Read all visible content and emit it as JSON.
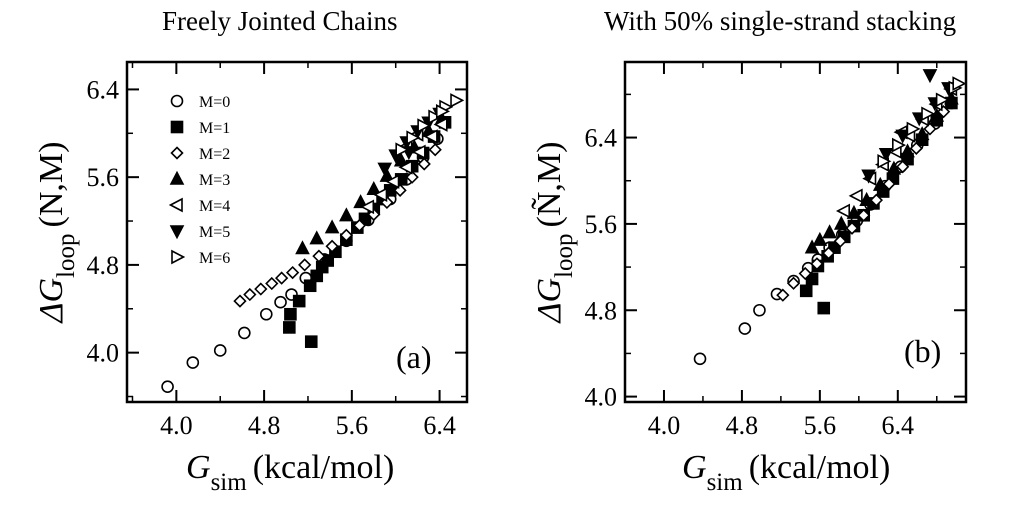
{
  "chart_data": [
    {
      "type": "scatter",
      "panel_label": "(a)",
      "title": "Freely Jointed Chains",
      "xlabel": {
        "main": "G",
        "sub": "sim",
        "unit": "(kcal/mol)"
      },
      "ylabel": {
        "prefix": "ΔG",
        "sub": "loop",
        "arg": "(N,M)"
      },
      "xlim": [
        3.55,
        6.65
      ],
      "ylim": [
        3.55,
        6.65
      ],
      "xticks": [
        4.0,
        4.8,
        5.6,
        6.4
      ],
      "yticks": [
        4.0,
        4.8,
        5.6,
        6.4
      ],
      "xtick_labels": [
        "4.0",
        "4.8",
        "5.6",
        "6.4"
      ],
      "ytick_labels": [
        "4.0",
        "4.8",
        "5.6",
        "6.4"
      ],
      "legend_position": "top-left",
      "series": [
        {
          "name": "M=0",
          "marker": "circle-open",
          "points": [
            [
              3.92,
              3.69
            ],
            [
              4.15,
              3.91
            ],
            [
              4.4,
              4.02
            ],
            [
              4.62,
              4.18
            ],
            [
              4.82,
              4.35
            ],
            [
              4.95,
              4.46
            ],
            [
              5.05,
              4.53
            ],
            [
              5.18,
              4.68
            ],
            [
              5.35,
              4.85
            ],
            [
              5.55,
              5.02
            ],
            [
              5.75,
              5.21
            ],
            [
              5.95,
              5.4
            ],
            [
              6.1,
              5.58
            ],
            [
              6.25,
              5.78
            ],
            [
              6.38,
              5.95
            ]
          ]
        },
        {
          "name": "M=1",
          "marker": "square-filled",
          "points": [
            [
              5.03,
              4.23
            ],
            [
              5.04,
              4.35
            ],
            [
              5.12,
              4.47
            ],
            [
              5.22,
              4.61
            ],
            [
              5.28,
              4.7
            ],
            [
              5.33,
              4.78
            ],
            [
              5.38,
              4.84
            ],
            [
              5.45,
              4.92
            ],
            [
              5.55,
              5.03
            ],
            [
              5.65,
              5.14
            ],
            [
              5.72,
              5.22
            ],
            [
              5.8,
              5.31
            ],
            [
              5.88,
              5.4
            ],
            [
              5.95,
              5.48
            ],
            [
              6.05,
              5.58
            ],
            [
              6.15,
              5.7
            ],
            [
              6.25,
              5.82
            ],
            [
              6.35,
              5.97
            ],
            [
              6.45,
              6.1
            ],
            [
              5.23,
              4.1
            ]
          ]
        },
        {
          "name": "M=2",
          "marker": "diamond-open",
          "points": [
            [
              4.58,
              4.47
            ],
            [
              4.67,
              4.53
            ],
            [
              4.77,
              4.58
            ],
            [
              4.87,
              4.63
            ],
            [
              4.96,
              4.68
            ],
            [
              5.06,
              4.73
            ],
            [
              5.17,
              4.8
            ],
            [
              5.3,
              4.88
            ],
            [
              5.42,
              4.97
            ],
            [
              5.55,
              5.07
            ],
            [
              5.67,
              5.16
            ],
            [
              5.8,
              5.26
            ],
            [
              5.92,
              5.37
            ],
            [
              6.04,
              5.48
            ],
            [
              6.15,
              5.6
            ],
            [
              6.26,
              5.72
            ],
            [
              6.36,
              5.85
            ]
          ]
        },
        {
          "name": "M=3",
          "marker": "triangle-up-filled",
          "points": [
            [
              5.15,
              4.95
            ],
            [
              5.28,
              5.04
            ],
            [
              5.42,
              5.14
            ],
            [
              5.55,
              5.25
            ],
            [
              5.68,
              5.37
            ],
            [
              5.8,
              5.49
            ],
            [
              5.92,
              5.61
            ],
            [
              6.05,
              5.75
            ],
            [
              6.17,
              5.87
            ],
            [
              6.3,
              6.02
            ],
            [
              6.42,
              6.13
            ]
          ]
        },
        {
          "name": "M=4",
          "marker": "triangle-left-open",
          "points": [
            [
              5.75,
              5.33
            ],
            [
              5.87,
              5.44
            ],
            [
              5.98,
              5.56
            ],
            [
              6.1,
              5.69
            ],
            [
              6.22,
              5.83
            ],
            [
              6.33,
              5.97
            ],
            [
              6.42,
              6.08
            ],
            [
              6.1,
              5.88
            ],
            [
              6.2,
              5.99
            ]
          ]
        },
        {
          "name": "M=5",
          "marker": "triangle-down-filled",
          "points": [
            [
              5.9,
              5.68
            ],
            [
              6.0,
              5.8
            ],
            [
              6.1,
              5.92
            ],
            [
              6.2,
              6.02
            ],
            [
              6.3,
              6.1
            ],
            [
              6.4,
              6.18
            ],
            [
              6.12,
              5.83
            ]
          ]
        },
        {
          "name": "M=6",
          "marker": "triangle-right-open",
          "points": [
            [
              6.05,
              5.85
            ],
            [
              6.15,
              5.96
            ],
            [
              6.25,
              6.07
            ],
            [
              6.35,
              6.15
            ],
            [
              6.45,
              6.24
            ],
            [
              6.55,
              6.3
            ],
            [
              6.42,
              6.2
            ]
          ]
        }
      ]
    },
    {
      "type": "scatter",
      "panel_label": "(b)",
      "title": "With 50% single-strand stacking",
      "xlabel": {
        "main": "G",
        "sub": "sim",
        "unit": "(kcal/mol)"
      },
      "ylabel": {
        "prefix": "ΔG",
        "sub": "loop",
        "arg": "(Ñ,M)"
      },
      "xlim": [
        3.6,
        7.1
      ],
      "ylim": [
        3.95,
        7.1
      ],
      "xticks": [
        4.0,
        4.8,
        5.6,
        6.4
      ],
      "yticks": [
        4.0,
        4.8,
        5.6,
        6.4
      ],
      "xtick_labels": [
        "4.0",
        "4.8",
        "5.6",
        "6.4"
      ],
      "ytick_labels": [
        "4.0",
        "4.8",
        "5.6",
        "6.4"
      ],
      "series": [
        {
          "name": "M=0",
          "marker": "circle-open",
          "points": [
            [
              4.37,
              4.35
            ],
            [
              4.83,
              4.63
            ],
            [
              4.98,
              4.8
            ],
            [
              5.16,
              4.95
            ],
            [
              5.33,
              5.07
            ],
            [
              5.48,
              5.19
            ],
            [
              5.58,
              5.27
            ],
            [
              5.7,
              5.38
            ],
            [
              5.83,
              5.5
            ],
            [
              5.98,
              5.63
            ],
            [
              6.12,
              5.78
            ],
            [
              6.27,
              5.95
            ],
            [
              6.43,
              6.13
            ],
            [
              6.6,
              6.33
            ],
            [
              6.78,
              6.53
            ],
            [
              6.95,
              6.72
            ]
          ]
        },
        {
          "name": "M=1",
          "marker": "square-filled",
          "points": [
            [
              5.46,
              4.98
            ],
            [
              5.52,
              5.09
            ],
            [
              5.58,
              5.21
            ],
            [
              5.64,
              4.82
            ],
            [
              5.68,
              5.3
            ],
            [
              5.75,
              5.38
            ],
            [
              5.85,
              5.48
            ],
            [
              5.95,
              5.58
            ],
            [
              6.05,
              5.68
            ],
            [
              6.15,
              5.79
            ],
            [
              6.25,
              5.9
            ],
            [
              6.35,
              6.02
            ],
            [
              6.5,
              6.2
            ],
            [
              6.65,
              6.38
            ],
            [
              6.8,
              6.56
            ],
            [
              6.95,
              6.72
            ]
          ]
        },
        {
          "name": "M=2",
          "marker": "diamond-open",
          "points": [
            [
              5.22,
              4.94
            ],
            [
              5.33,
              5.05
            ],
            [
              5.45,
              5.14
            ],
            [
              5.57,
              5.23
            ],
            [
              5.69,
              5.33
            ],
            [
              5.81,
              5.44
            ],
            [
              5.93,
              5.56
            ],
            [
              6.05,
              5.68
            ],
            [
              6.18,
              5.82
            ],
            [
              6.31,
              5.97
            ],
            [
              6.45,
              6.13
            ],
            [
              6.59,
              6.3
            ],
            [
              6.73,
              6.48
            ],
            [
              6.87,
              6.64
            ]
          ]
        },
        {
          "name": "M=3",
          "marker": "triangle-up-filled",
          "points": [
            [
              5.52,
              5.38
            ],
            [
              5.6,
              5.45
            ],
            [
              5.7,
              5.52
            ],
            [
              5.82,
              5.6
            ],
            [
              5.95,
              5.7
            ],
            [
              6.08,
              5.82
            ],
            [
              6.22,
              5.96
            ],
            [
              6.36,
              6.11
            ],
            [
              6.5,
              6.27
            ],
            [
              6.65,
              6.43
            ],
            [
              6.8,
              6.6
            ],
            [
              6.95,
              6.76
            ]
          ]
        },
        {
          "name": "M=4",
          "marker": "triangle-left-open",
          "points": [
            [
              5.85,
              5.72
            ],
            [
              5.98,
              5.86
            ],
            [
              6.12,
              6.02
            ],
            [
              6.25,
              6.15
            ],
            [
              6.38,
              6.27
            ],
            [
              6.52,
              6.42
            ],
            [
              6.66,
              6.57
            ],
            [
              6.8,
              6.71
            ],
            [
              6.95,
              6.85
            ],
            [
              6.44,
              6.45
            ]
          ]
        },
        {
          "name": "M=5",
          "marker": "triangle-down-filled",
          "points": [
            [
              6.1,
              6.05
            ],
            [
              6.28,
              6.25
            ],
            [
              6.45,
              6.42
            ],
            [
              6.62,
              6.58
            ],
            [
              6.78,
              6.72
            ],
            [
              6.92,
              6.86
            ],
            [
              6.73,
              6.98
            ]
          ]
        },
        {
          "name": "M=6",
          "marker": "triangle-right-open",
          "points": [
            [
              6.25,
              6.18
            ],
            [
              6.4,
              6.33
            ],
            [
              6.55,
              6.48
            ],
            [
              6.7,
              6.62
            ],
            [
              6.85,
              6.75
            ],
            [
              6.98,
              6.86
            ],
            [
              7.02,
              6.9
            ]
          ]
        }
      ]
    }
  ]
}
